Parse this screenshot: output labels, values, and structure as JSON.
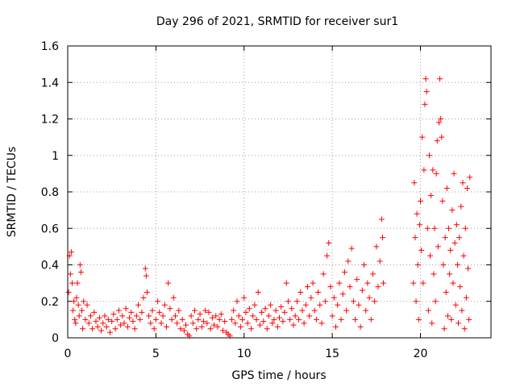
{
  "chart_data": {
    "type": "scatter",
    "title": "Day 296 of 2021, SRMTID for receiver sur1",
    "xlabel": "GPS time / hours",
    "ylabel": "SRMTID / TECUs",
    "xlim": [
      0,
      24
    ],
    "ylim": [
      0,
      1.6
    ],
    "xticks": [
      0,
      5,
      10,
      15,
      20
    ],
    "xtick_labels": [
      "0",
      "5",
      "10",
      "15",
      "20"
    ],
    "yticks": [
      0,
      0.2,
      0.4,
      0.6,
      0.8,
      1.0,
      1.2,
      1.4,
      1.6
    ],
    "ytick_labels": [
      "0",
      "0.2",
      "0.4",
      "0.6",
      "0.8",
      "1",
      "1.2",
      "1.4",
      "1.6"
    ],
    "grid": true,
    "marker": "plus",
    "color": "#ff0000",
    "series": [
      {
        "name": "SRMTID",
        "points": [
          [
            0.05,
            0.25
          ],
          [
            0.1,
            0.45
          ],
          [
            0.15,
            0.35
          ],
          [
            0.2,
            0.47
          ],
          [
            0.25,
            0.3
          ],
          [
            0.3,
            0.15
          ],
          [
            0.35,
            0.2
          ],
          [
            0.4,
            0.1
          ],
          [
            0.45,
            0.08
          ],
          [
            0.5,
            0.22
          ],
          [
            0.55,
            0.3
          ],
          [
            0.6,
            0.18
          ],
          [
            0.65,
            0.12
          ],
          [
            0.7,
            0.4
          ],
          [
            0.75,
            0.36
          ],
          [
            0.8,
            0.15
          ],
          [
            0.85,
            0.05
          ],
          [
            0.9,
            0.2
          ],
          [
            1.0,
            0.1
          ],
          [
            1.1,
            0.18
          ],
          [
            1.2,
            0.08
          ],
          [
            1.3,
            0.12
          ],
          [
            1.4,
            0.05
          ],
          [
            1.5,
            0.14
          ],
          [
            1.6,
            0.09
          ],
          [
            1.7,
            0.06
          ],
          [
            1.8,
            0.11
          ],
          [
            1.9,
            0.04
          ],
          [
            2.0,
            0.08
          ],
          [
            2.1,
            0.12
          ],
          [
            2.2,
            0.06
          ],
          [
            2.3,
            0.1
          ],
          [
            2.4,
            0.03
          ],
          [
            2.5,
            0.09
          ],
          [
            2.6,
            0.13
          ],
          [
            2.7,
            0.05
          ],
          [
            2.8,
            0.1
          ],
          [
            2.9,
            0.15
          ],
          [
            3.0,
            0.07
          ],
          [
            3.1,
            0.12
          ],
          [
            3.2,
            0.08
          ],
          [
            3.3,
            0.16
          ],
          [
            3.4,
            0.06
          ],
          [
            3.5,
            0.11
          ],
          [
            3.6,
            0.14
          ],
          [
            3.7,
            0.09
          ],
          [
            3.8,
            0.05
          ],
          [
            3.9,
            0.12
          ],
          [
            4.0,
            0.18
          ],
          [
            4.1,
            0.1
          ],
          [
            4.2,
            0.14
          ],
          [
            4.3,
            0.22
          ],
          [
            4.4,
            0.38
          ],
          [
            4.45,
            0.34
          ],
          [
            4.5,
            0.25
          ],
          [
            4.6,
            0.12
          ],
          [
            4.7,
            0.08
          ],
          [
            4.8,
            0.15
          ],
          [
            4.9,
            0.05
          ],
          [
            5.0,
            0.1
          ],
          [
            5.1,
            0.2
          ],
          [
            5.2,
            0.14
          ],
          [
            5.3,
            0.08
          ],
          [
            5.4,
            0.12
          ],
          [
            5.5,
            0.18
          ],
          [
            5.6,
            0.06
          ],
          [
            5.7,
            0.3
          ],
          [
            5.8,
            0.16
          ],
          [
            5.9,
            0.1
          ],
          [
            6.0,
            0.22
          ],
          [
            6.1,
            0.12
          ],
          [
            6.2,
            0.08
          ],
          [
            6.3,
            0.15
          ],
          [
            6.4,
            0.05
          ],
          [
            6.5,
            0.1
          ],
          [
            6.6,
            0.04
          ],
          [
            6.7,
            0.07
          ],
          [
            6.8,
            0.02
          ],
          [
            6.9,
            0.01
          ],
          [
            7.0,
            0.12
          ],
          [
            7.1,
            0.08
          ],
          [
            7.2,
            0.15
          ],
          [
            7.3,
            0.05
          ],
          [
            7.4,
            0.1
          ],
          [
            7.5,
            0.13
          ],
          [
            7.6,
            0.06
          ],
          [
            7.7,
            0.09
          ],
          [
            7.8,
            0.15
          ],
          [
            7.9,
            0.08
          ],
          [
            8.0,
            0.14
          ],
          [
            8.1,
            0.05
          ],
          [
            8.2,
            0.11
          ],
          [
            8.3,
            0.07
          ],
          [
            8.4,
            0.12
          ],
          [
            8.5,
            0.06
          ],
          [
            8.6,
            0.1
          ],
          [
            8.7,
            0.13
          ],
          [
            8.8,
            0.04
          ],
          [
            8.9,
            0.09
          ],
          [
            9.0,
            0.03
          ],
          [
            9.1,
            0.02
          ],
          [
            9.2,
            0.01
          ],
          [
            9.3,
            0.1
          ],
          [
            9.4,
            0.15
          ],
          [
            9.5,
            0.08
          ],
          [
            9.6,
            0.2
          ],
          [
            9.7,
            0.12
          ],
          [
            9.8,
            0.06
          ],
          [
            9.9,
            0.1
          ],
          [
            10.0,
            0.22
          ],
          [
            10.1,
            0.14
          ],
          [
            10.2,
            0.08
          ],
          [
            10.3,
            0.16
          ],
          [
            10.4,
            0.05
          ],
          [
            10.5,
            0.12
          ],
          [
            10.6,
            0.18
          ],
          [
            10.7,
            0.1
          ],
          [
            10.8,
            0.25
          ],
          [
            10.9,
            0.07
          ],
          [
            11.0,
            0.14
          ],
          [
            11.1,
            0.09
          ],
          [
            11.2,
            0.16
          ],
          [
            11.3,
            0.05
          ],
          [
            11.4,
            0.12
          ],
          [
            11.5,
            0.18
          ],
          [
            11.6,
            0.08
          ],
          [
            11.7,
            0.1
          ],
          [
            11.8,
            0.15
          ],
          [
            11.9,
            0.06
          ],
          [
            12.0,
            0.11
          ],
          [
            12.1,
            0.17
          ],
          [
            12.2,
            0.09
          ],
          [
            12.3,
            0.14
          ],
          [
            12.4,
            0.3
          ],
          [
            12.5,
            0.2
          ],
          [
            12.6,
            0.1
          ],
          [
            12.7,
            0.16
          ],
          [
            12.8,
            0.07
          ],
          [
            12.9,
            0.12
          ],
          [
            13.0,
            0.2
          ],
          [
            13.1,
            0.1
          ],
          [
            13.2,
            0.25
          ],
          [
            13.3,
            0.15
          ],
          [
            13.4,
            0.08
          ],
          [
            13.5,
            0.18
          ],
          [
            13.6,
            0.28
          ],
          [
            13.7,
            0.12
          ],
          [
            13.8,
            0.22
          ],
          [
            13.9,
            0.3
          ],
          [
            14.0,
            0.15
          ],
          [
            14.1,
            0.1
          ],
          [
            14.2,
            0.25
          ],
          [
            14.3,
            0.18
          ],
          [
            14.4,
            0.08
          ],
          [
            14.5,
            0.35
          ],
          [
            14.6,
            0.2
          ],
          [
            14.7,
            0.45
          ],
          [
            14.8,
            0.52
          ],
          [
            14.9,
            0.28
          ],
          [
            15.0,
            0.12
          ],
          [
            15.1,
            0.22
          ],
          [
            15.2,
            0.06
          ],
          [
            15.3,
            0.18
          ],
          [
            15.4,
            0.3
          ],
          [
            15.5,
            0.1
          ],
          [
            15.6,
            0.24
          ],
          [
            15.7,
            0.36
          ],
          [
            15.8,
            0.15
          ],
          [
            15.9,
            0.42
          ],
          [
            16.0,
            0.28
          ],
          [
            16.1,
            0.49
          ],
          [
            16.2,
            0.2
          ],
          [
            16.3,
            0.1
          ],
          [
            16.4,
            0.32
          ],
          [
            16.5,
            0.18
          ],
          [
            16.6,
            0.06
          ],
          [
            16.7,
            0.26
          ],
          [
            16.8,
            0.4
          ],
          [
            16.9,
            0.15
          ],
          [
            17.0,
            0.3
          ],
          [
            17.1,
            0.22
          ],
          [
            17.2,
            0.1
          ],
          [
            17.3,
            0.35
          ],
          [
            17.4,
            0.2
          ],
          [
            17.5,
            0.5
          ],
          [
            17.6,
            0.28
          ],
          [
            17.7,
            0.42
          ],
          [
            17.8,
            0.65
          ],
          [
            17.85,
            0.55
          ],
          [
            17.9,
            0.3
          ],
          [
            19.6,
            0.3
          ],
          [
            19.65,
            0.85
          ],
          [
            19.7,
            0.55
          ],
          [
            19.75,
            0.2
          ],
          [
            19.8,
            0.68
          ],
          [
            19.85,
            0.4
          ],
          [
            19.9,
            0.1
          ],
          [
            19.95,
            0.62
          ],
          [
            20.0,
            0.75
          ],
          [
            20.05,
            0.48
          ],
          [
            20.1,
            1.1
          ],
          [
            20.15,
            0.3
          ],
          [
            20.2,
            0.92
          ],
          [
            20.25,
            1.28
          ],
          [
            20.3,
            1.42
          ],
          [
            20.35,
            1.35
          ],
          [
            20.4,
            0.6
          ],
          [
            20.45,
            0.15
          ],
          [
            20.5,
            1.0
          ],
          [
            20.55,
            0.45
          ],
          [
            20.6,
            0.78
          ],
          [
            20.65,
            0.08
          ],
          [
            20.7,
            0.92
          ],
          [
            20.75,
            0.35
          ],
          [
            20.8,
            0.6
          ],
          [
            20.85,
            0.2
          ],
          [
            20.9,
            0.9
          ],
          [
            20.95,
            1.08
          ],
          [
            21.0,
            0.5
          ],
          [
            21.05,
            1.18
          ],
          [
            21.1,
            1.42
          ],
          [
            21.15,
            1.2
          ],
          [
            21.2,
            1.1
          ],
          [
            21.25,
            0.75
          ],
          [
            21.3,
            0.4
          ],
          [
            21.35,
            0.05
          ],
          [
            21.4,
            0.55
          ],
          [
            21.45,
            0.25
          ],
          [
            21.5,
            0.82
          ],
          [
            21.55,
            0.12
          ],
          [
            21.6,
            0.6
          ],
          [
            21.65,
            0.35
          ],
          [
            21.7,
            0.48
          ],
          [
            21.75,
            0.1
          ],
          [
            21.8,
            0.7
          ],
          [
            21.85,
            0.3
          ],
          [
            21.9,
            0.9
          ],
          [
            21.95,
            0.52
          ],
          [
            22.0,
            0.18
          ],
          [
            22.05,
            0.62
          ],
          [
            22.1,
            0.4
          ],
          [
            22.15,
            0.08
          ],
          [
            22.2,
            0.55
          ],
          [
            22.25,
            0.28
          ],
          [
            22.3,
            0.72
          ],
          [
            22.35,
            0.15
          ],
          [
            22.4,
            0.85
          ],
          [
            22.45,
            0.45
          ],
          [
            22.5,
            0.05
          ],
          [
            22.55,
            0.6
          ],
          [
            22.6,
            0.22
          ],
          [
            22.65,
            0.82
          ],
          [
            22.7,
            0.38
          ],
          [
            22.75,
            0.1
          ],
          [
            22.8,
            0.88
          ]
        ]
      }
    ]
  }
}
